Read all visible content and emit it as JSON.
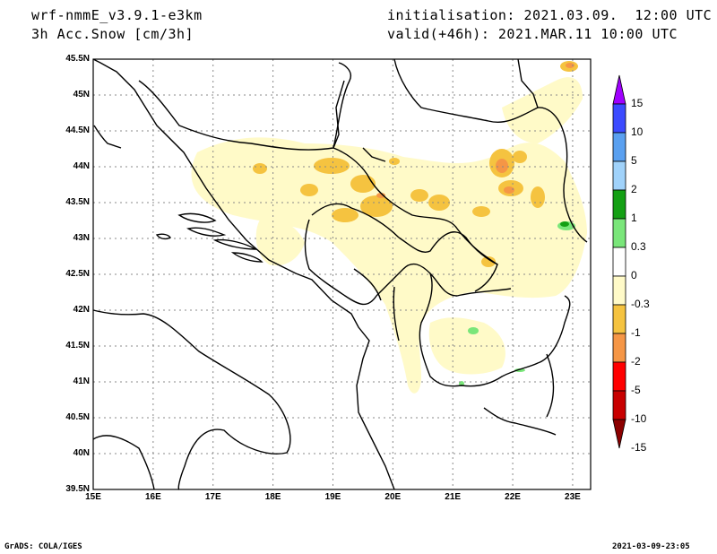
{
  "header": {
    "model": "wrf-nmmE_v3.9.1-e3km",
    "field": "3h Acc.Snow [cm/3h]",
    "init": "initialisation: 2021.03.09.  12:00 UTC",
    "valid": "valid(+46h): 2021.MAR.11 10:00 UTC"
  },
  "map": {
    "lat_ticks": [
      "45.5N",
      "45N",
      "44.5N",
      "44N",
      "43.5N",
      "43N",
      "42.5N",
      "42N",
      "41.5N",
      "41N",
      "40.5N",
      "40N",
      "39.5N"
    ],
    "lon_ticks": [
      "15E",
      "16E",
      "17E",
      "18E",
      "19E",
      "20E",
      "21E",
      "22E",
      "23E"
    ],
    "lat_range": [
      39.5,
      45.5
    ],
    "lon_range": [
      15,
      23.3
    ],
    "gridlines": "dotted"
  },
  "colorbar": {
    "levels": [
      "15",
      "10",
      "5",
      "2",
      "1",
      "0.3",
      "0",
      "-0.3",
      "-1",
      "-2",
      "-5",
      "-10",
      "-15"
    ],
    "colors": [
      "#a000ff",
      "#3c4bff",
      "#5aa0f0",
      "#a0d2fa",
      "#14a014",
      "#7ae67a",
      "#ffffff",
      "#fffac8",
      "#f5c340",
      "#f59646",
      "#ff0000",
      "#c80000",
      "#8c0000"
    ]
  },
  "footer": {
    "left": "GrADS: COLA/IGES",
    "right": "2021-03-09-23:05"
  }
}
